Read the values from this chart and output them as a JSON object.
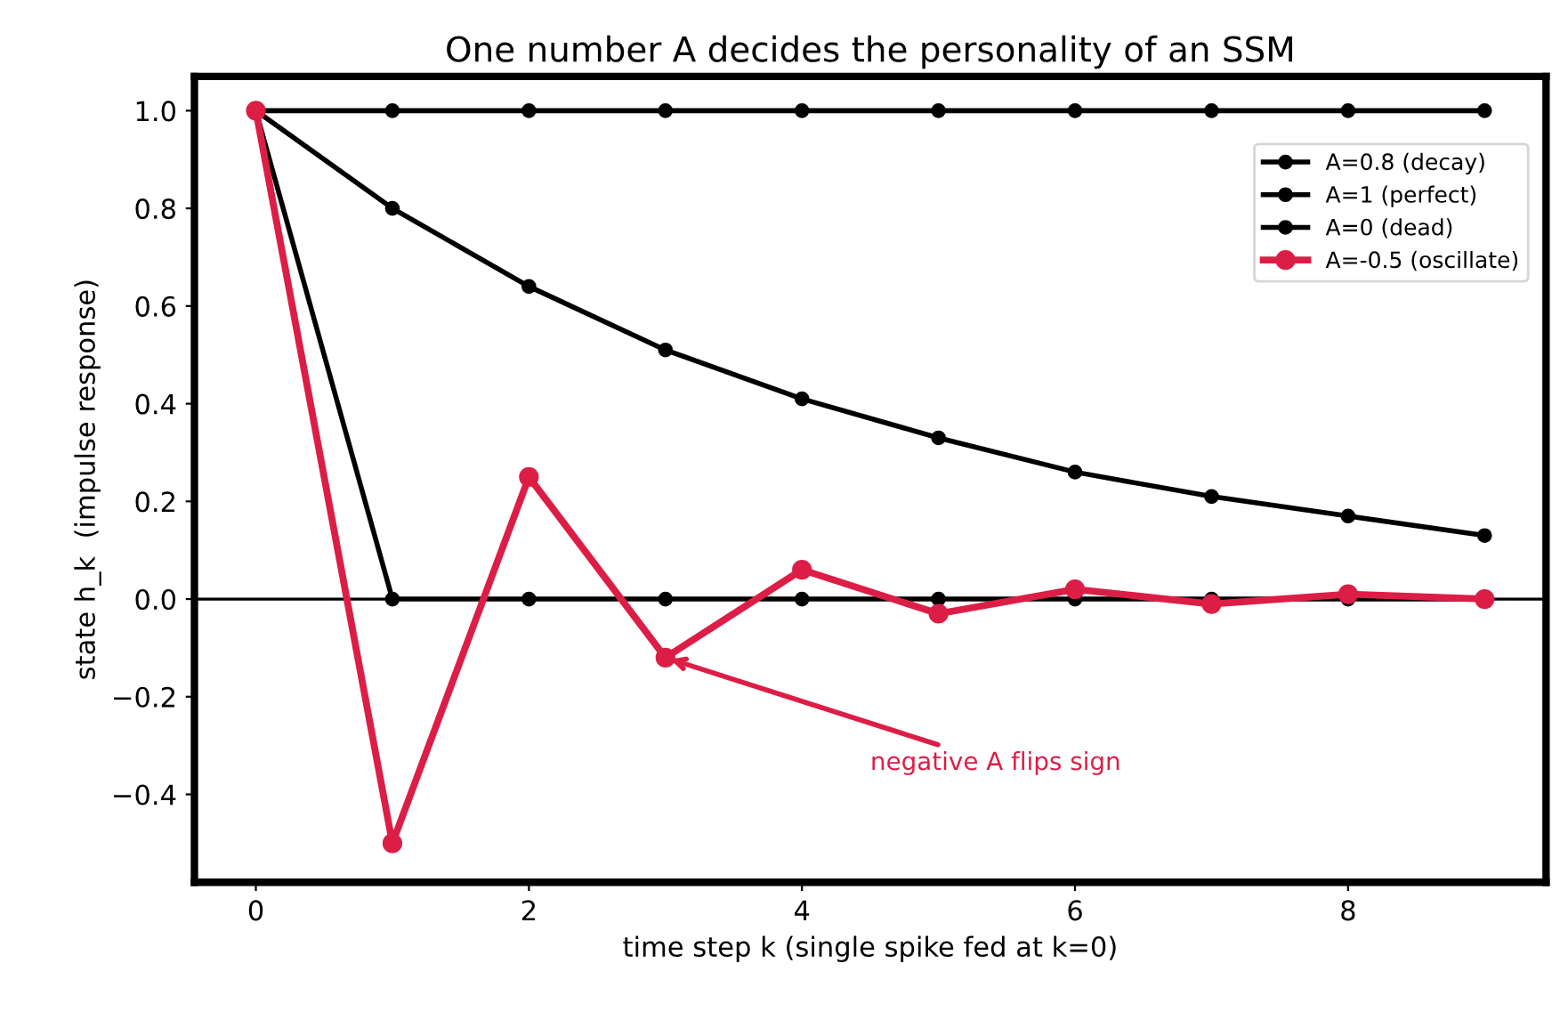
{
  "chart_data": {
    "type": "line",
    "title": "One number A decides the personality of an SSM",
    "xlabel": "time step k (single spike fed at k=0)",
    "ylabel": "state h_k  (impulse response)",
    "x": [
      0,
      1,
      2,
      3,
      4,
      5,
      6,
      7,
      8,
      9
    ],
    "series": [
      {
        "name": "A=0.8 (decay)",
        "color": "#000000",
        "values": [
          1,
          1,
          1,
          1,
          1,
          1,
          1,
          1,
          1,
          1
        ]
      },
      {
        "name": "A=1 (perfect)",
        "color": "#000000",
        "values": [
          1,
          0.8,
          0.64,
          0.51,
          0.41,
          0.33,
          0.26,
          0.21,
          0.17,
          0.13
        ]
      },
      {
        "name": "A=0 (dead)",
        "color": "#000000",
        "values": [
          1,
          0,
          0,
          0,
          0,
          0,
          0,
          0,
          0,
          0
        ]
      },
      {
        "name": "A=-0.5 (oscillate)",
        "color": "#dc1e46",
        "values": [
          1,
          -0.5,
          0.25,
          -0.12,
          0.06,
          -0.03,
          0.02,
          -0.01,
          0.01,
          0.0
        ]
      }
    ],
    "xlim": [
      -0.45,
      9.45
    ],
    "ylim": [
      -0.58,
      1.07
    ],
    "xticks": [
      0,
      2,
      4,
      6,
      8
    ],
    "yticks": [
      {
        "value": -0.4,
        "label": "−0.4"
      },
      {
        "value": -0.2,
        "label": "−0.2"
      },
      {
        "value": 0,
        "label": "0.0"
      },
      {
        "value": 0.2,
        "label": "0.2"
      },
      {
        "value": 0.4,
        "label": "0.4"
      },
      {
        "value": 0.6,
        "label": "0.6"
      },
      {
        "value": 0.8,
        "label": "0.8"
      },
      {
        "value": 1,
        "label": "1.0"
      }
    ],
    "ref_lines": [
      {
        "axis": "y",
        "value": 0,
        "color": "#000000"
      }
    ],
    "annotations": [
      {
        "text": "negative A flips sign",
        "x": 3,
        "y": -0.12
      }
    ],
    "marker": "circle",
    "legend": "top right",
    "grid": false
  }
}
